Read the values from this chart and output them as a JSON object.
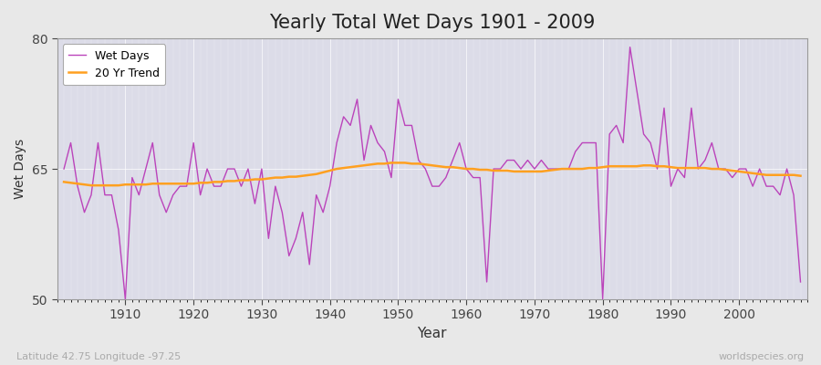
{
  "title": "Yearly Total Wet Days 1901 - 2009",
  "xlabel": "Year",
  "ylabel": "Wet Days",
  "subtitle_left": "Latitude 42.75 Longitude -97.25",
  "subtitle_right": "worldspecies.org",
  "ylim": [
    50,
    80
  ],
  "yticks": [
    50,
    65,
    80
  ],
  "line_color": "#BB44BB",
  "trend_color": "#FFA020",
  "fig_bg": "#E8E8E8",
  "ax_bg": "#DCDCE8",
  "years": [
    1901,
    1902,
    1903,
    1904,
    1905,
    1906,
    1907,
    1908,
    1909,
    1910,
    1911,
    1912,
    1913,
    1914,
    1915,
    1916,
    1917,
    1918,
    1919,
    1920,
    1921,
    1922,
    1923,
    1924,
    1925,
    1926,
    1927,
    1928,
    1929,
    1930,
    1931,
    1932,
    1933,
    1934,
    1935,
    1936,
    1937,
    1938,
    1939,
    1940,
    1941,
    1942,
    1943,
    1944,
    1945,
    1946,
    1947,
    1948,
    1949,
    1950,
    1951,
    1952,
    1953,
    1954,
    1955,
    1956,
    1957,
    1958,
    1959,
    1960,
    1961,
    1962,
    1963,
    1964,
    1965,
    1966,
    1967,
    1968,
    1969,
    1970,
    1971,
    1972,
    1973,
    1974,
    1975,
    1976,
    1977,
    1978,
    1979,
    1980,
    1981,
    1982,
    1983,
    1984,
    1985,
    1986,
    1987,
    1988,
    1989,
    1990,
    1991,
    1992,
    1993,
    1994,
    1995,
    1996,
    1997,
    1998,
    1999,
    2000,
    2001,
    2002,
    2003,
    2004,
    2005,
    2006,
    2007,
    2008,
    2009
  ],
  "wet_days": [
    65,
    68,
    63,
    60,
    62,
    68,
    62,
    62,
    58,
    50,
    64,
    62,
    65,
    68,
    62,
    60,
    62,
    63,
    63,
    68,
    62,
    65,
    63,
    63,
    65,
    65,
    63,
    65,
    61,
    65,
    57,
    63,
    60,
    55,
    57,
    60,
    54,
    62,
    60,
    63,
    68,
    71,
    70,
    73,
    66,
    70,
    68,
    67,
    64,
    73,
    70,
    70,
    66,
    65,
    63,
    63,
    64,
    66,
    68,
    65,
    64,
    64,
    52,
    65,
    65,
    66,
    66,
    65,
    66,
    65,
    66,
    65,
    65,
    65,
    65,
    67,
    68,
    68,
    68,
    50,
    69,
    70,
    68,
    79,
    74,
    69,
    68,
    65,
    72,
    63,
    65,
    64,
    72,
    65,
    66,
    68,
    65,
    65,
    64,
    65,
    65,
    63,
    65,
    63,
    63,
    62,
    65,
    62,
    52
  ],
  "trend_values": [
    63.5,
    63.4,
    63.3,
    63.2,
    63.1,
    63.1,
    63.1,
    63.1,
    63.1,
    63.2,
    63.2,
    63.2,
    63.2,
    63.3,
    63.3,
    63.3,
    63.3,
    63.3,
    63.3,
    63.3,
    63.4,
    63.4,
    63.5,
    63.5,
    63.6,
    63.6,
    63.7,
    63.7,
    63.8,
    63.8,
    63.9,
    64.0,
    64.0,
    64.1,
    64.1,
    64.2,
    64.3,
    64.4,
    64.6,
    64.8,
    65.0,
    65.1,
    65.2,
    65.3,
    65.4,
    65.5,
    65.6,
    65.6,
    65.7,
    65.7,
    65.7,
    65.6,
    65.6,
    65.5,
    65.4,
    65.3,
    65.2,
    65.2,
    65.1,
    65.0,
    65.0,
    64.9,
    64.9,
    64.8,
    64.8,
    64.8,
    64.7,
    64.7,
    64.7,
    64.7,
    64.7,
    64.8,
    64.9,
    65.0,
    65.0,
    65.0,
    65.0,
    65.1,
    65.1,
    65.2,
    65.3,
    65.3,
    65.3,
    65.3,
    65.3,
    65.4,
    65.4,
    65.3,
    65.3,
    65.2,
    65.1,
    65.1,
    65.1,
    65.1,
    65.1,
    65.0,
    65.0,
    64.9,
    64.8,
    64.7,
    64.6,
    64.5,
    64.4,
    64.3,
    64.3,
    64.3,
    64.3,
    64.3,
    64.2
  ]
}
